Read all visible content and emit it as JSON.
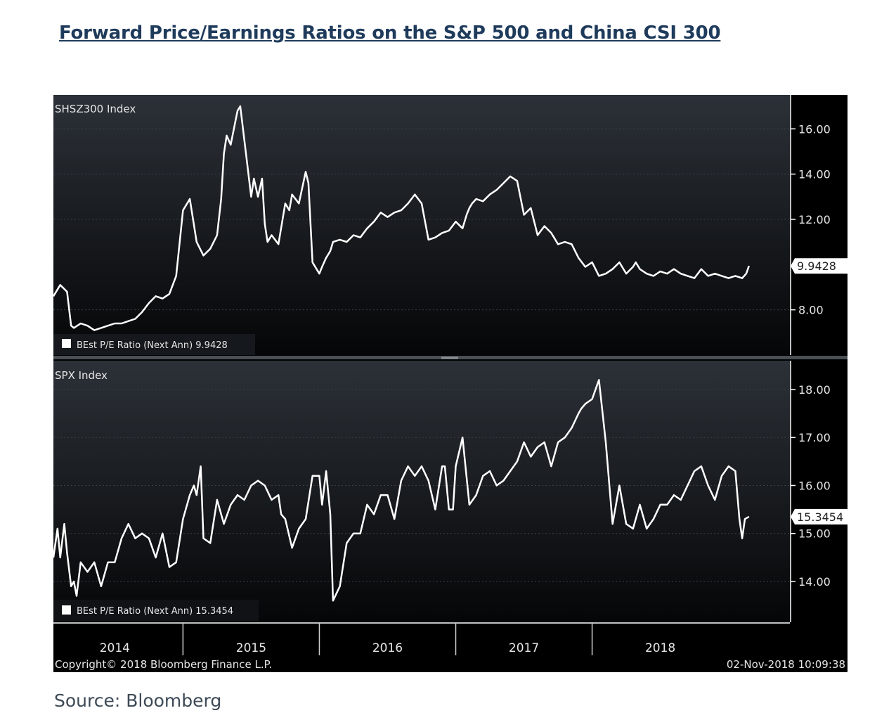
{
  "page": {
    "title": "Forward Price/Earnings Ratios on the S&P 500 and China CSI 300",
    "source": "Source: Bloomberg"
  },
  "chart_data": [
    {
      "type": "line",
      "panel_title": "SHSZ300 Index",
      "legend": "BEst P/E Ratio (Next Ann) 9.9428",
      "last_value_label": "9.9428",
      "y_ticks": [
        "16.00",
        "14.00",
        "12.00",
        "8.00"
      ],
      "y_tick_values": [
        16,
        14,
        12,
        8
      ],
      "ylim": [
        6.0,
        17.5
      ],
      "xlim": [
        2013.55,
        2018.95
      ],
      "series": [
        {
          "x": [
            2013.55,
            2013.6,
            2013.65,
            2013.68,
            2013.7,
            2013.75,
            2013.8,
            2013.85,
            2013.9,
            2013.95,
            2014.0,
            2014.05,
            2014.1,
            2014.15,
            2014.2,
            2014.25,
            2014.3,
            2014.35,
            2014.4,
            2014.45,
            2014.5,
            2014.55,
            2014.6,
            2014.65,
            2014.7,
            2014.75,
            2014.78,
            2014.8,
            2014.82,
            2014.85,
            2014.9,
            2014.92,
            2014.95,
            2014.97,
            2015.0,
            2015.02,
            2015.05,
            2015.08,
            2015.1,
            2015.12,
            2015.15,
            2015.2,
            2015.25,
            2015.28,
            2015.3,
            2015.35,
            2015.4,
            2015.42,
            2015.45,
            2015.5,
            2015.52,
            2015.55,
            2015.58,
            2015.6,
            2015.65,
            2015.7,
            2015.75,
            2015.8,
            2015.85,
            2015.9,
            2015.95,
            2016.0,
            2016.05,
            2016.1,
            2016.15,
            2016.2,
            2016.25,
            2016.3,
            2016.35,
            2016.4,
            2016.45,
            2016.5,
            2016.55,
            2016.58,
            2016.6,
            2016.62,
            2016.65,
            2016.7,
            2016.75,
            2016.8,
            2016.85,
            2016.9,
            2016.95,
            2017.0,
            2017.05,
            2017.1,
            2017.15,
            2017.2,
            2017.25,
            2017.3,
            2017.35,
            2017.4,
            2017.45,
            2017.5,
            2017.55,
            2017.6,
            2017.65,
            2017.7,
            2017.75,
            2017.8,
            2017.82,
            2017.85,
            2017.9,
            2017.95,
            2018.0,
            2018.05,
            2018.1,
            2018.15,
            2018.2,
            2018.25,
            2018.3,
            2018.35,
            2018.4,
            2018.45,
            2018.5,
            2018.55,
            2018.6,
            2018.63,
            2018.65
          ],
          "y": [
            8.6,
            9.1,
            8.8,
            7.3,
            7.2,
            7.4,
            7.3,
            7.1,
            7.2,
            7.3,
            7.4,
            7.4,
            7.5,
            7.6,
            7.9,
            8.3,
            8.6,
            8.5,
            8.7,
            9.5,
            12.4,
            12.9,
            11.0,
            10.4,
            10.7,
            11.3,
            12.9,
            14.9,
            15.7,
            15.3,
            16.8,
            17.0,
            15.5,
            14.5,
            13.0,
            13.8,
            13.0,
            13.8,
            11.8,
            11.0,
            11.3,
            10.9,
            12.7,
            12.4,
            13.1,
            12.7,
            14.1,
            13.6,
            10.1,
            9.6,
            9.9,
            10.3,
            10.6,
            11.0,
            11.1,
            11.0,
            11.3,
            11.2,
            11.6,
            11.9,
            12.3,
            12.1,
            12.3,
            12.4,
            12.7,
            13.1,
            12.7,
            11.1,
            11.2,
            11.4,
            11.5,
            11.9,
            11.6,
            12.2,
            12.5,
            12.7,
            12.9,
            12.8,
            13.1,
            13.3,
            13.6,
            13.9,
            13.7,
            12.2,
            12.5,
            11.3,
            11.7,
            11.4,
            10.9,
            11.0,
            10.9,
            10.3,
            9.9,
            10.1,
            9.5,
            9.6,
            9.8,
            10.1,
            9.6,
            9.9,
            10.1,
            9.8,
            9.6,
            9.5,
            9.7,
            9.6,
            9.8,
            9.6,
            9.5,
            9.4,
            9.8,
            9.5,
            9.6,
            9.5,
            9.4,
            9.5,
            9.4,
            9.6,
            9.94
          ]
        }
      ]
    },
    {
      "type": "line",
      "panel_title": "SPX Index",
      "legend": "BEst P/E Ratio (Next Ann) 15.3454",
      "last_value_label": "15.3454",
      "y_ticks": [
        "18.00",
        "17.00",
        "16.00",
        "15.00",
        "14.00"
      ],
      "y_tick_values": [
        18,
        17,
        16,
        15,
        14
      ],
      "ylim": [
        13.15,
        18.6
      ],
      "xlim": [
        2013.55,
        2018.95
      ],
      "series": [
        {
          "x": [
            2013.55,
            2013.58,
            2013.6,
            2013.63,
            2013.65,
            2013.68,
            2013.7,
            2013.72,
            2013.75,
            2013.8,
            2013.85,
            2013.9,
            2013.95,
            2014.0,
            2014.05,
            2014.1,
            2014.15,
            2014.2,
            2014.25,
            2014.3,
            2014.35,
            2014.4,
            2014.45,
            2014.5,
            2014.55,
            2014.58,
            2014.6,
            2014.63,
            2014.65,
            2014.7,
            2014.75,
            2014.8,
            2014.85,
            2014.9,
            2014.95,
            2015.0,
            2015.05,
            2015.1,
            2015.15,
            2015.2,
            2015.22,
            2015.25,
            2015.3,
            2015.35,
            2015.4,
            2015.45,
            2015.5,
            2015.52,
            2015.55,
            2015.58,
            2015.6,
            2015.65,
            2015.7,
            2015.75,
            2015.8,
            2015.85,
            2015.9,
            2015.95,
            2016.0,
            2016.05,
            2016.1,
            2016.15,
            2016.2,
            2016.25,
            2016.3,
            2016.35,
            2016.4,
            2016.42,
            2016.45,
            2016.48,
            2016.5,
            2016.55,
            2016.6,
            2016.65,
            2016.7,
            2016.75,
            2016.8,
            2016.85,
            2016.9,
            2016.95,
            2017.0,
            2017.05,
            2017.1,
            2017.15,
            2017.2,
            2017.25,
            2017.3,
            2017.35,
            2017.4,
            2017.42,
            2017.45,
            2017.5,
            2017.55,
            2017.6,
            2017.65,
            2017.7,
            2017.75,
            2017.8,
            2017.85,
            2017.9,
            2017.95,
            2018.0,
            2018.05,
            2018.1,
            2018.15,
            2018.2,
            2018.25,
            2018.3,
            2018.35,
            2018.4,
            2018.45,
            2018.5,
            2018.55,
            2018.58,
            2018.6,
            2018.62,
            2018.65
          ],
          "y": [
            14.5,
            15.1,
            14.5,
            15.2,
            14.6,
            13.9,
            14.0,
            13.7,
            14.4,
            14.2,
            14.4,
            13.9,
            14.4,
            14.4,
            14.9,
            15.2,
            14.9,
            15.0,
            14.9,
            14.5,
            15.0,
            14.3,
            14.4,
            15.3,
            15.8,
            16.0,
            15.8,
            16.4,
            14.9,
            14.8,
            15.7,
            15.2,
            15.6,
            15.8,
            15.7,
            16.0,
            16.1,
            16.0,
            15.7,
            15.8,
            15.4,
            15.3,
            14.7,
            15.1,
            15.3,
            16.2,
            16.2,
            15.6,
            16.3,
            15.4,
            13.6,
            13.9,
            14.8,
            15.0,
            15.0,
            15.6,
            15.4,
            15.8,
            15.8,
            15.3,
            16.1,
            16.4,
            16.2,
            16.4,
            16.1,
            15.5,
            16.4,
            16.4,
            15.5,
            15.5,
            16.4,
            17.0,
            15.6,
            15.8,
            16.2,
            16.3,
            16.0,
            16.1,
            16.3,
            16.5,
            16.9,
            16.6,
            16.8,
            16.9,
            16.4,
            16.9,
            17.0,
            17.2,
            17.5,
            17.6,
            17.7,
            17.8,
            18.2,
            16.9,
            15.2,
            16.0,
            15.2,
            15.1,
            15.6,
            15.1,
            15.3,
            15.6,
            15.6,
            15.8,
            15.7,
            16.0,
            16.3,
            16.4,
            16.0,
            15.7,
            16.2,
            16.4,
            16.3,
            15.3,
            14.9,
            15.3,
            15.35
          ]
        }
      ]
    }
  ],
  "x_axis": {
    "labels": [
      "2014",
      "2015",
      "2016",
      "2017",
      "2018"
    ],
    "label_positions": [
      2014.0,
      2015.0,
      2016.0,
      2017.0,
      2018.0
    ],
    "separators": [
      2013.5,
      2014.5,
      2015.5,
      2016.5,
      2017.5
    ]
  },
  "footer": {
    "copyright": "Copyright© 2018 Bloomberg Finance L.P.",
    "timestamp": "02-Nov-2018 10:09:38"
  },
  "colors": {
    "background": "#000000",
    "panel_top": "#2c3138",
    "panel_bottom": "#050607",
    "line": "#ffffff",
    "title": "#1f3b5c",
    "source_text": "#3d4a57"
  }
}
